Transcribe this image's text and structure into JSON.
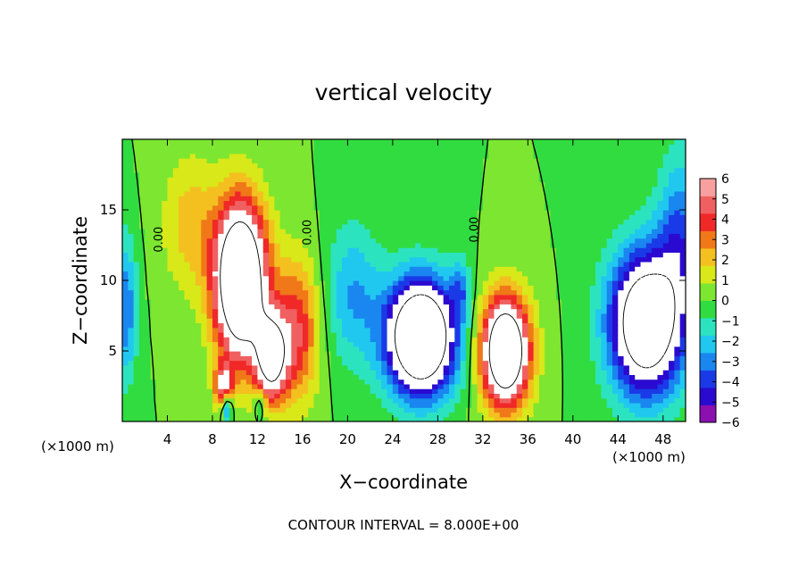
{
  "chart_data": {
    "type": "heatmap",
    "title": "vertical velocity",
    "xlabel": "X−coordinate",
    "ylabel": "Z−coordinate",
    "x_unit": "(×1000 m)",
    "x_unit_right": "(×1000 m)",
    "xlim": [
      0,
      50
    ],
    "ylim": [
      0,
      20
    ],
    "xticks": [
      4,
      8,
      12,
      16,
      20,
      24,
      28,
      32,
      36,
      40,
      44,
      48
    ],
    "yticks": [
      5,
      10,
      15
    ],
    "contour_interval_text": "CONTOUR INTERVAL = 8.000E+00",
    "contour_labels": [
      {
        "text": "0.00",
        "x": 3.3,
        "z": 12.9
      },
      {
        "text": "0.00",
        "x": 16.5,
        "z": 13.4
      },
      {
        "text": "0.00",
        "x": 31.3,
        "z": 13.6
      }
    ],
    "colorbar": {
      "ticks": [
        "6",
        "5",
        "4",
        "3",
        "2",
        "1",
        "0",
        "−1",
        "−2",
        "−3",
        "−4",
        "−5",
        "−6"
      ],
      "min": -6,
      "max": 6,
      "colors": [
        "#8a10b0",
        "#2a0ad0",
        "#1a3ae8",
        "#1a86f0",
        "#20c8f0",
        "#2ce3c0",
        "#30dc40",
        "#7ce630",
        "#d8e818",
        "#f4c020",
        "#f07818",
        "#f02828",
        "#f06060",
        "#f8a0a0"
      ]
    },
    "updrafts": [
      {
        "x": 10.5,
        "z": 10,
        "sx": 2.3,
        "sz": 5.5,
        "amp": 14
      },
      {
        "x": 13.2,
        "z": 4.5,
        "sx": 1.4,
        "sz": 3.0,
        "amp": 9
      },
      {
        "x": 15.5,
        "z": 6.5,
        "sx": 2.0,
        "sz": 5.0,
        "amp": 5
      },
      {
        "x": 34.0,
        "z": 5.0,
        "sx": 2.1,
        "sz": 3.8,
        "amp": 13
      },
      {
        "x": 9.0,
        "z": 2.5,
        "sx": 0.8,
        "sz": 1.6,
        "amp": 6
      },
      {
        "x": 6.0,
        "z": 14.0,
        "sx": 2.5,
        "sz": 5.0,
        "amp": 2.5
      }
    ],
    "downdrafts": [
      {
        "x": 26.5,
        "z": 6.0,
        "sx": 3.0,
        "sz": 4.0,
        "amp": 14
      },
      {
        "x": 46.5,
        "z": 7.0,
        "sx": 3.2,
        "sz": 5.0,
        "amp": 12
      },
      {
        "x": 20.5,
        "z": 9.0,
        "sx": 2.5,
        "sz": 5.0,
        "amp": 3
      },
      {
        "x": 49.5,
        "z": 13.0,
        "sx": 2.0,
        "sz": 6.0,
        "amp": 4
      },
      {
        "x": 0.3,
        "z": 8.0,
        "sx": 1.0,
        "sz": 5.0,
        "amp": 4
      },
      {
        "x": 9.3,
        "z": 1.0,
        "sx": 0.5,
        "sz": 1.2,
        "amp": 5
      },
      {
        "x": 12.2,
        "z": 1.2,
        "sx": 0.5,
        "sz": 1.2,
        "amp": 3
      },
      {
        "x": 30.0,
        "z": 9.5,
        "sx": 0.8,
        "sz": 2.0,
        "amp": 3
      }
    ]
  }
}
